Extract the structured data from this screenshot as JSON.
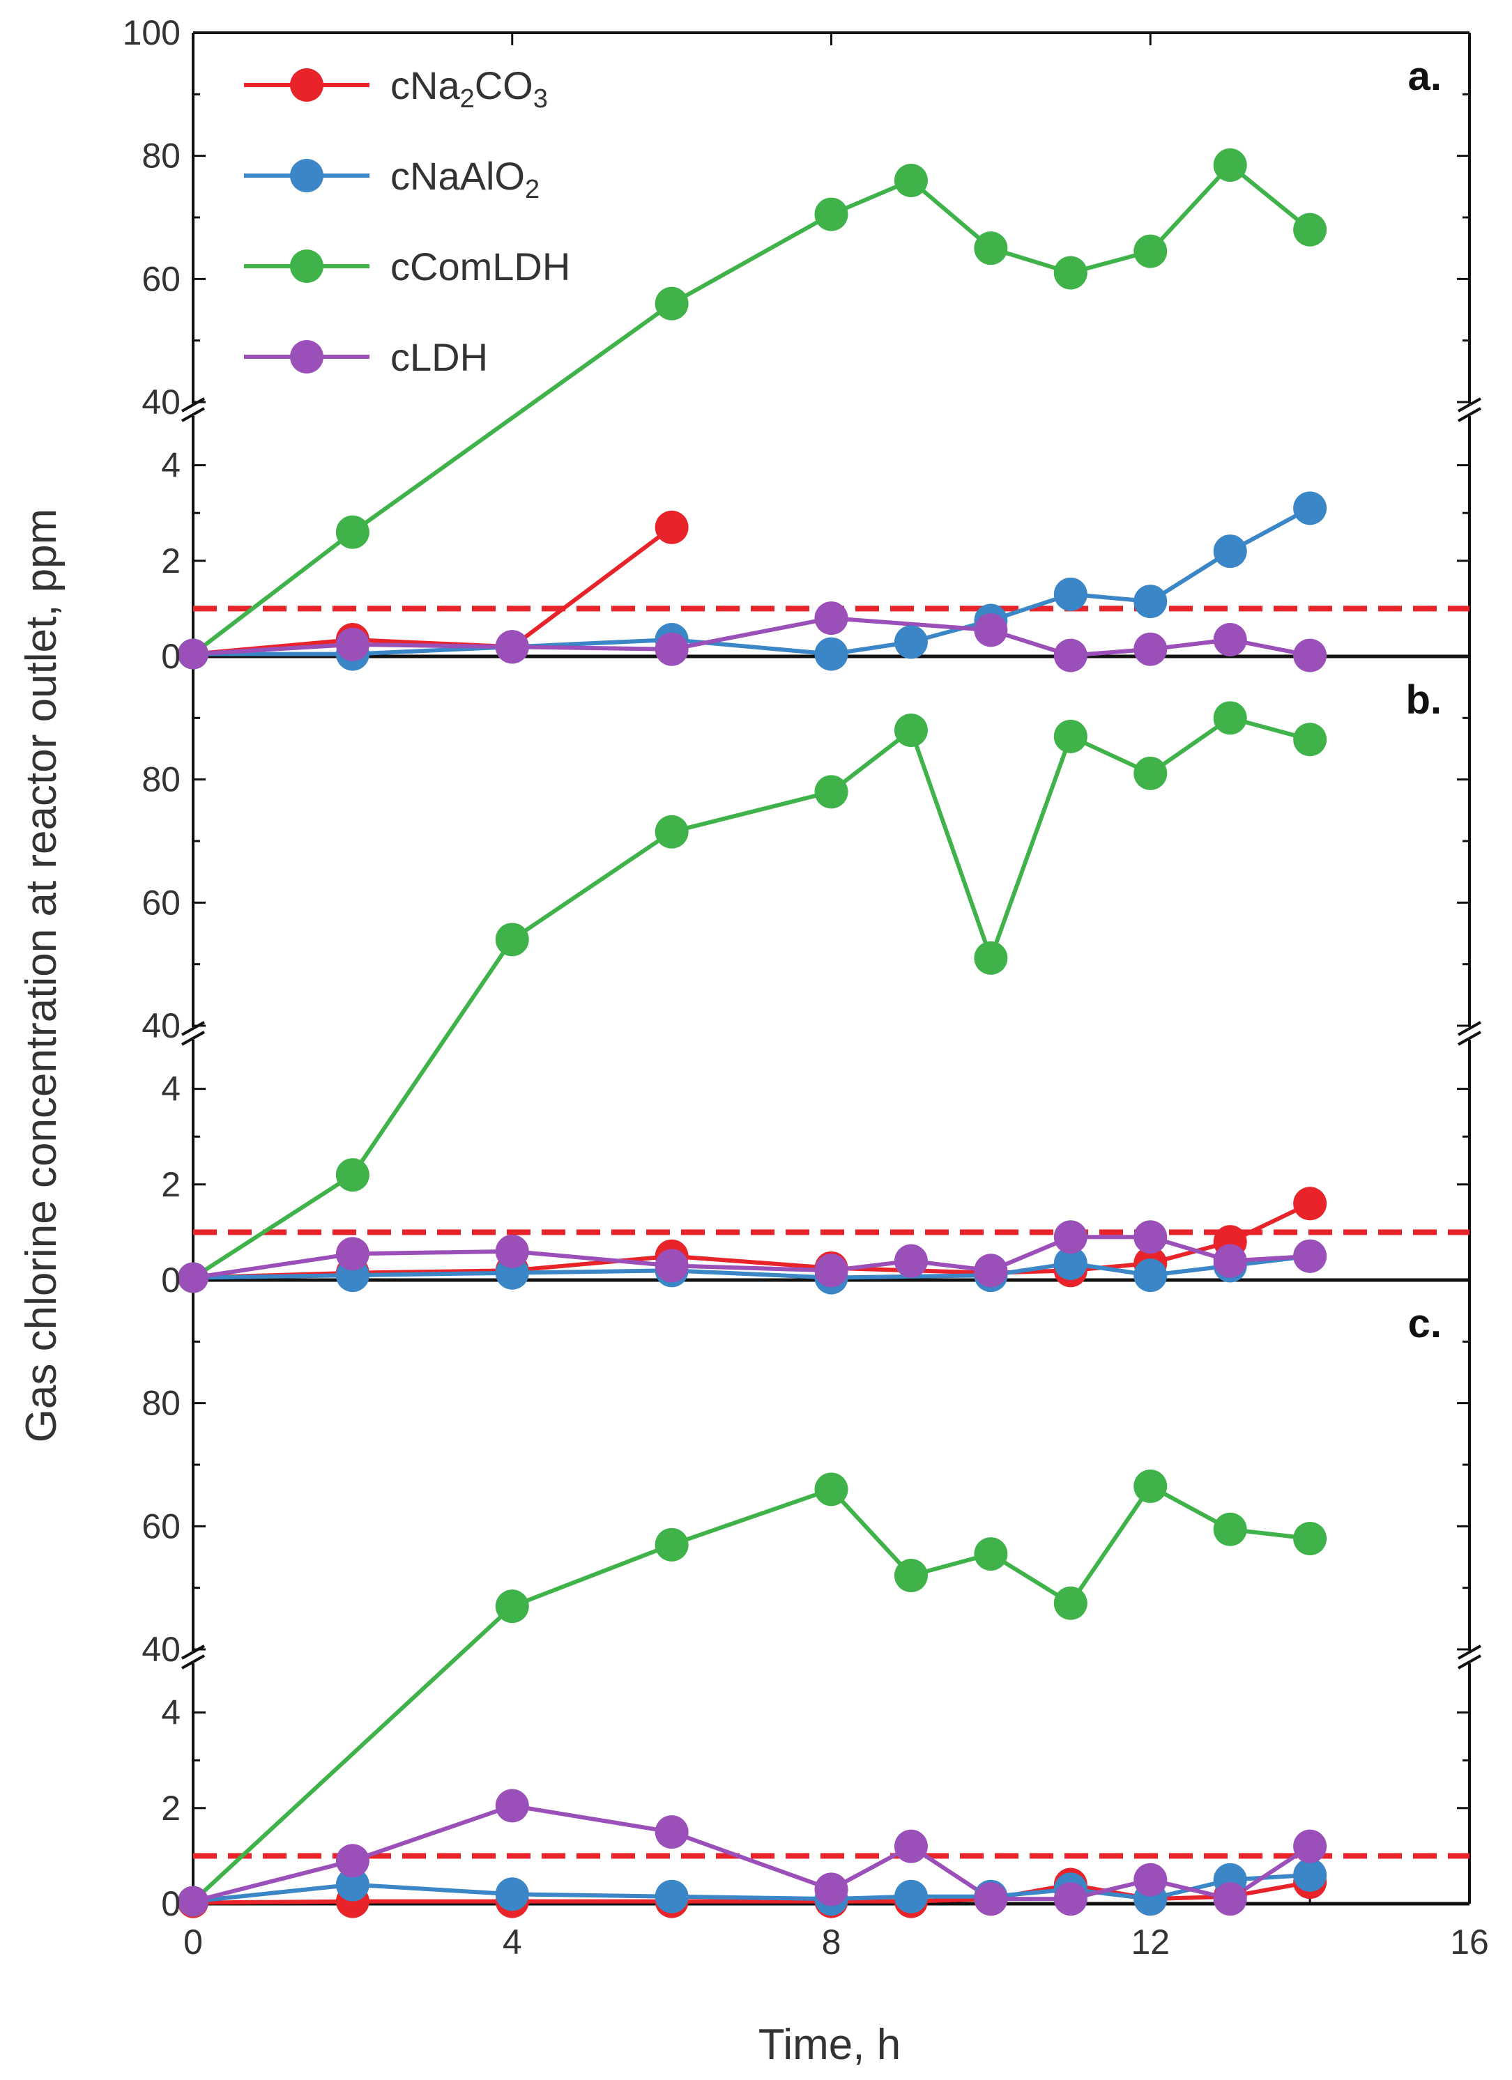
{
  "chart_data": {
    "type": "line",
    "ylabel": "Gas chlorine concentration at reactor outlet, ppm",
    "xlabel": "Time, h",
    "xlim": [
      0,
      16
    ],
    "x_ticks": [
      "0",
      "4",
      "8",
      "12",
      "16"
    ],
    "y_ticks_upper": [
      "40",
      "60",
      "80",
      "100"
    ],
    "y_ticks_lower": [
      "0",
      "2",
      "4"
    ],
    "upper_range": [
      40,
      100
    ],
    "lower_range": [
      0,
      5
    ],
    "threshold": 1,
    "legend": [
      {
        "key": "cNa2CO3",
        "prefix": "cNa",
        "sub1": "2",
        "mid": "CO",
        "sub2": "3",
        "color": "#e8242a"
      },
      {
        "key": "cNaAlO2",
        "prefix": "cNaAlO",
        "sub1": "2",
        "mid": "",
        "sub2": "",
        "color": "#3a86c6"
      },
      {
        "key": "cComLDH",
        "prefix": "cComLDH",
        "sub1": "",
        "mid": "",
        "sub2": "",
        "color": "#3fb34a"
      },
      {
        "key": "cLDH",
        "prefix": "cLDH",
        "sub1": "",
        "mid": "",
        "sub2": "",
        "color": "#9b4fb8"
      }
    ],
    "panels": [
      {
        "label": "a.",
        "series": [
          {
            "name": "cNa2CO3",
            "color": "#e8242a",
            "x": [
              0,
              2,
              4,
              6
            ],
            "y": [
              0.05,
              0.35,
              0.2,
              2.7
            ]
          },
          {
            "name": "cNaAlO2",
            "color": "#3a86c6",
            "x": [
              0,
              2,
              4,
              6,
              8,
              9,
              10,
              11,
              12,
              13,
              14
            ],
            "y": [
              0.05,
              0.05,
              0.2,
              0.35,
              0.05,
              0.3,
              0.75,
              1.3,
              1.15,
              2.2,
              3.1
            ]
          },
          {
            "name": "cComLDH",
            "color": "#3fb34a",
            "x": [
              0,
              2,
              6,
              8,
              9,
              10,
              11,
              12,
              13,
              14
            ],
            "y": [
              0.05,
              2.6,
              56,
              70.5,
              76,
              65,
              61,
              64.5,
              78.5,
              68
            ]
          },
          {
            "name": "cLDH",
            "color": "#9b4fb8",
            "x": [
              0,
              2,
              4,
              6,
              8,
              10,
              11,
              12,
              13,
              14
            ],
            "y": [
              0.05,
              0.25,
              0.2,
              0.15,
              0.8,
              0.55,
              0.02,
              0.15,
              0.35,
              0.02
            ]
          }
        ]
      },
      {
        "label": "b.",
        "series": [
          {
            "name": "cNa2CO3",
            "color": "#e8242a",
            "x": [
              0,
              2,
              4,
              6,
              8,
              10,
              11,
              12,
              13,
              14
            ],
            "y": [
              0.05,
              0.15,
              0.2,
              0.5,
              0.25,
              0.15,
              0.2,
              0.35,
              0.8,
              1.6
            ]
          },
          {
            "name": "cNaAlO2",
            "color": "#3a86c6",
            "x": [
              0,
              2,
              4,
              6,
              8,
              10,
              11,
              12,
              13,
              14
            ],
            "y": [
              0.05,
              0.1,
              0.15,
              0.2,
              0.05,
              0.1,
              0.35,
              0.1,
              0.3,
              0.5
            ]
          },
          {
            "name": "cComLDH",
            "color": "#3fb34a",
            "x": [
              0,
              2,
              4,
              6,
              8,
              9,
              10,
              11,
              12,
              13,
              14
            ],
            "y": [
              0.05,
              2.2,
              54,
              71.5,
              78,
              88,
              51,
              87,
              81,
              90,
              86.5
            ]
          },
          {
            "name": "cLDH",
            "color": "#9b4fb8",
            "x": [
              0,
              2,
              4,
              6,
              8,
              9,
              10,
              11,
              12,
              13,
              14
            ],
            "y": [
              0.05,
              0.55,
              0.6,
              0.3,
              0.2,
              0.4,
              0.2,
              0.9,
              0.9,
              0.4,
              0.5
            ]
          }
        ]
      },
      {
        "label": "c.",
        "series": [
          {
            "name": "cNa2CO3",
            "color": "#e8242a",
            "x": [
              0,
              2,
              4,
              6,
              8,
              9,
              10,
              11,
              12,
              13,
              14
            ],
            "y": [
              0.02,
              0.05,
              0.05,
              0.05,
              0.05,
              0.05,
              0.1,
              0.4,
              0.1,
              0.15,
              0.45
            ]
          },
          {
            "name": "cNaAlO2",
            "color": "#3a86c6",
            "x": [
              0,
              2,
              4,
              6,
              8,
              9,
              10,
              11,
              12,
              13,
              14
            ],
            "y": [
              0.05,
              0.4,
              0.2,
              0.15,
              0.1,
              0.15,
              0.15,
              0.3,
              0.1,
              0.5,
              0.6
            ]
          },
          {
            "name": "cComLDH",
            "color": "#3fb34a",
            "x": [
              0,
              4,
              6,
              8,
              9,
              10,
              11,
              12,
              13,
              14
            ],
            "y": [
              0.05,
              47,
              57,
              66,
              52,
              55.5,
              47.5,
              66.5,
              59.5,
              58
            ]
          },
          {
            "name": "cLDH",
            "color": "#9b4fb8",
            "x": [
              0,
              2,
              4,
              6,
              8,
              9,
              10,
              11,
              12,
              13,
              14
            ],
            "y": [
              0.05,
              0.9,
              2.05,
              1.5,
              0.3,
              1.2,
              0.1,
              0.1,
              0.5,
              0.1,
              1.2
            ]
          }
        ]
      }
    ]
  }
}
